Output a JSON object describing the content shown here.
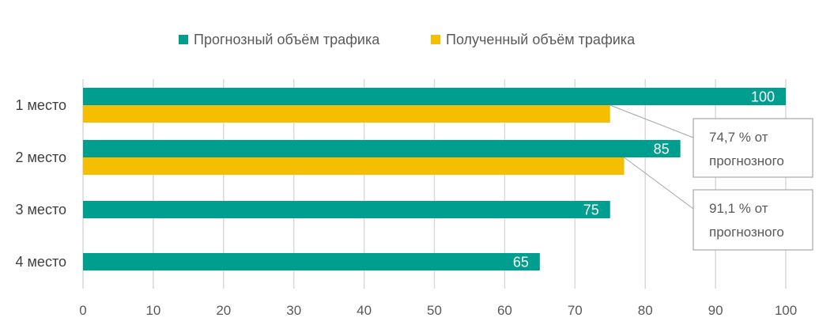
{
  "chart_data": {
    "type": "bar",
    "orientation": "horizontal",
    "categories": [
      "1 место",
      "2 место",
      "3 место",
      "4 место"
    ],
    "series": [
      {
        "name": "Прогнозный объём трафика",
        "color": "#009E8E",
        "values": [
          100,
          85,
          75,
          65
        ]
      },
      {
        "name": "Полученный объём трафика",
        "color": "#F5BE00",
        "values": [
          75,
          77,
          null,
          null
        ]
      }
    ],
    "data_labels": [
      "100",
      "85",
      "75",
      "65"
    ],
    "xlim": [
      0,
      100
    ],
    "x_ticks": [
      "0",
      "10",
      "20",
      "30",
      "40",
      "50",
      "60",
      "70",
      "80",
      "90",
      "100"
    ],
    "grid": "vertical",
    "legend_position": "top",
    "annotations": [
      {
        "line1": "74,7 % от",
        "line2": "прогнозного",
        "category_index": 0
      },
      {
        "line1": "91,1 % от",
        "line2": "прогнозного",
        "category_index": 1
      }
    ]
  }
}
